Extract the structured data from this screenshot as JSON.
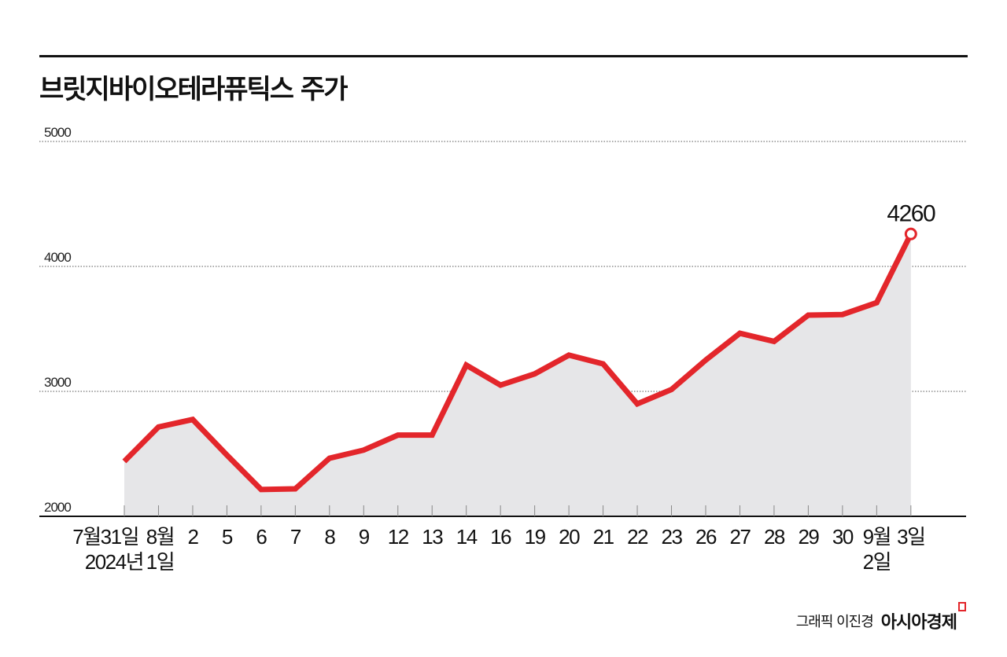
{
  "chart_data": {
    "type": "area",
    "title": "브릿지바이오테라퓨틱스 주가",
    "xlabel": "",
    "ylabel": "",
    "ylim": [
      2000,
      5000
    ],
    "yticks": [
      "5000",
      "4000",
      "3000",
      "2000"
    ],
    "ytick_values": [
      5000,
      4000,
      3000,
      2000
    ],
    "grid": true,
    "categories": [
      [
        "7월31일",
        "2024년"
      ],
      [
        "8월",
        "1일"
      ],
      [
        "2",
        ""
      ],
      [
        "5",
        ""
      ],
      [
        "6",
        ""
      ],
      [
        "7",
        ""
      ],
      [
        "8",
        ""
      ],
      [
        "9",
        ""
      ],
      [
        "12",
        ""
      ],
      [
        "13",
        ""
      ],
      [
        "14",
        ""
      ],
      [
        "16",
        ""
      ],
      [
        "19",
        ""
      ],
      [
        "20",
        ""
      ],
      [
        "21",
        ""
      ],
      [
        "22",
        ""
      ],
      [
        "23",
        ""
      ],
      [
        "26",
        ""
      ],
      [
        "27",
        ""
      ],
      [
        "28",
        ""
      ],
      [
        "29",
        ""
      ],
      [
        "30",
        ""
      ],
      [
        "9월",
        "2일"
      ],
      [
        "3일",
        ""
      ]
    ],
    "values": [
      2440,
      2715,
      2775,
      2490,
      2215,
      2220,
      2465,
      2530,
      2650,
      2650,
      3210,
      3050,
      3140,
      3290,
      3220,
      2900,
      3015,
      3250,
      3465,
      3400,
      3610,
      3615,
      3710,
      4260
    ],
    "annotation": "4260",
    "line_color": "#e3262b",
    "fill_color": "#e6e6e8"
  },
  "credit": {
    "byline": "그래픽 이진경",
    "logo": "아시아경제"
  }
}
